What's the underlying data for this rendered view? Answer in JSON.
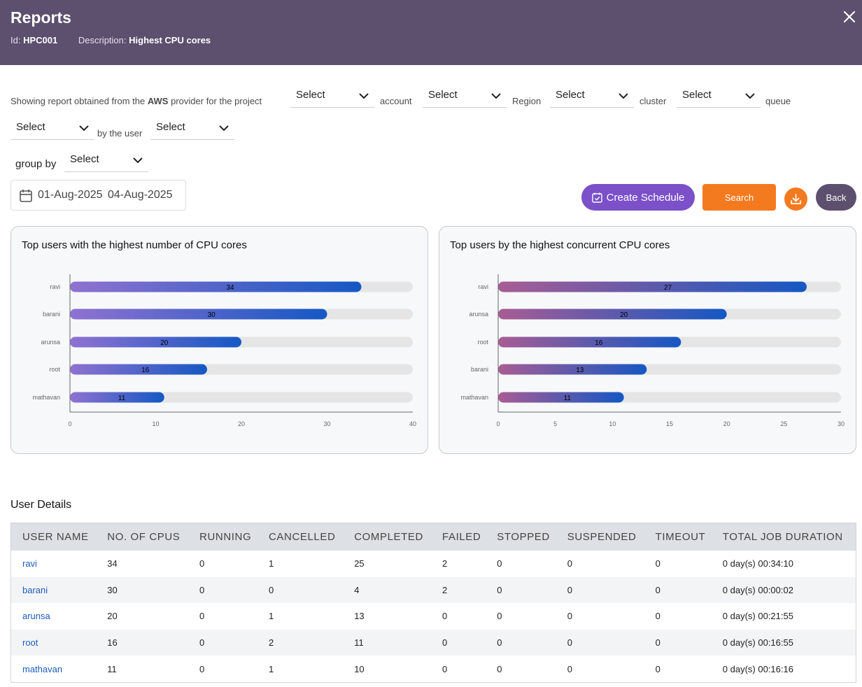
{
  "header": {
    "title": "Reports",
    "id_label": "Id:",
    "id_value": "HPC001",
    "desc_label": "Description:",
    "desc_value": "Highest CPU cores"
  },
  "filters": {
    "intro_prefix": "Showing report obtained from the",
    "provider": "AWS",
    "intro_suffix": "provider for the project",
    "project_select": "Select",
    "account_label": "account",
    "account_select": "Select",
    "region_label": "Region",
    "region_select": "Select",
    "cluster_label": "cluster",
    "cluster_select": "Select",
    "queue_label": "queue",
    "queue_select": "Select",
    "user_label": "by the user",
    "user_select": "Select",
    "groupby_label": "group by",
    "groupby_select": "Select"
  },
  "date_range": {
    "start": "01-Aug-2025",
    "end": "04-Aug-2025"
  },
  "buttons": {
    "create_schedule": "Create Schedule",
    "search": "Search",
    "back": "Back"
  },
  "colors": {
    "header_bg": "#5d4f6e",
    "schedule": "#7b50c9",
    "search": "#f47a20",
    "link": "#1a5dbf",
    "bar_end": "#1558c4",
    "bar_start_left": "#8f72d0",
    "bar_start_right": "#a85c94",
    "track": "#e5e5e5"
  },
  "chart_data": [
    {
      "type": "bar",
      "orientation": "horizontal",
      "title": "Top users with the highest number of CPU cores",
      "categories": [
        "ravi",
        "barani",
        "arunsa",
        "root",
        "mathavan"
      ],
      "values": [
        34,
        30,
        20,
        16,
        11
      ],
      "xlim": [
        0,
        40
      ],
      "xticks": [
        0,
        10,
        20,
        30,
        40
      ]
    },
    {
      "type": "bar",
      "orientation": "horizontal",
      "title": "Top users by the highest concurrent CPU cores",
      "categories": [
        "ravi",
        "arunsa",
        "root",
        "barani",
        "mathavan"
      ],
      "values": [
        27,
        20,
        16,
        13,
        11
      ],
      "xlim": [
        0,
        30
      ],
      "xticks": [
        0,
        5,
        10,
        15,
        20,
        25,
        30
      ]
    }
  ],
  "user_details": {
    "title": "User Details",
    "columns": [
      "USER NAME",
      "NO. OF CPUS",
      "RUNNING",
      "CANCELLED",
      "COMPLETED",
      "FAILED",
      "STOPPED",
      "SUSPENDED",
      "TIMEOUT",
      "TOTAL JOB DURATION"
    ],
    "rows": [
      [
        "ravi",
        "34",
        "0",
        "1",
        "25",
        "2",
        "0",
        "0",
        "0",
        "0 day(s) 00:34:10"
      ],
      [
        "barani",
        "30",
        "0",
        "0",
        "4",
        "2",
        "0",
        "0",
        "0",
        "0 day(s) 00:00:02"
      ],
      [
        "arunsa",
        "20",
        "0",
        "1",
        "13",
        "0",
        "0",
        "0",
        "0",
        "0 day(s) 00:21:55"
      ],
      [
        "root",
        "16",
        "0",
        "2",
        "11",
        "0",
        "0",
        "0",
        "0",
        "0 day(s) 00:16:55"
      ],
      [
        "mathavan",
        "11",
        "0",
        "1",
        "10",
        "0",
        "0",
        "0",
        "0",
        "0 day(s) 00:16:16"
      ]
    ]
  }
}
